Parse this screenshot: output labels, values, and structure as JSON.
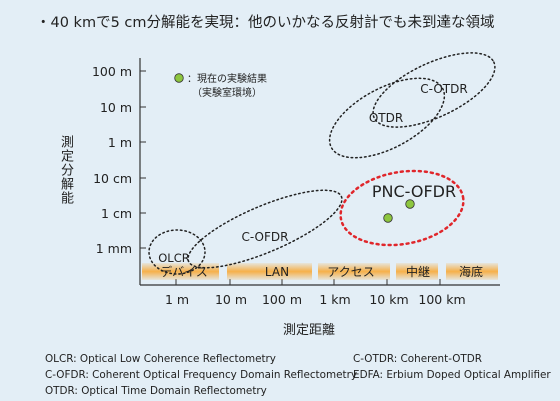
{
  "headline": "・40 kmで5 cm分解能を実現：他のいかなる反射計でも未到達な領域",
  "axes": {
    "y_label": "測定分解能",
    "x_label": "測定距離",
    "y_ticks": [
      "100 m",
      "10 m",
      "1 m",
      "10 cm",
      "1 cm",
      "1 mm"
    ],
    "x_ticks": [
      "1 m",
      "10 m",
      "100 m",
      "1 km",
      "10 km",
      "100 km"
    ]
  },
  "legend": {
    "line1": "：現在の実験結果",
    "line2": "（実験室環境）",
    "marker_color": "#8dc63f"
  },
  "regions": [
    {
      "name": "OLCR"
    },
    {
      "name": "C-OFDR"
    },
    {
      "name": "OTDR"
    },
    {
      "name": "C-OTDR"
    },
    {
      "name": "PNC-OFDR",
      "color": "#e0262b"
    }
  ],
  "bands": [
    "デバイス",
    "LAN",
    "アクセス",
    "中継",
    "海底"
  ],
  "band_color": "#f6b04a",
  "notes_left": [
    "OLCR: Optical Low Coherence Reflectometry",
    "C-OFDR: Coherent Optical Frequency Domain Reflectometry",
    "OTDR: Optical Time Domain Reflectometry"
  ],
  "notes_right": [
    "C-OTDR: Coherent-OTDR",
    "EDFA: Erbium Doped Optical Amplifier"
  ]
}
